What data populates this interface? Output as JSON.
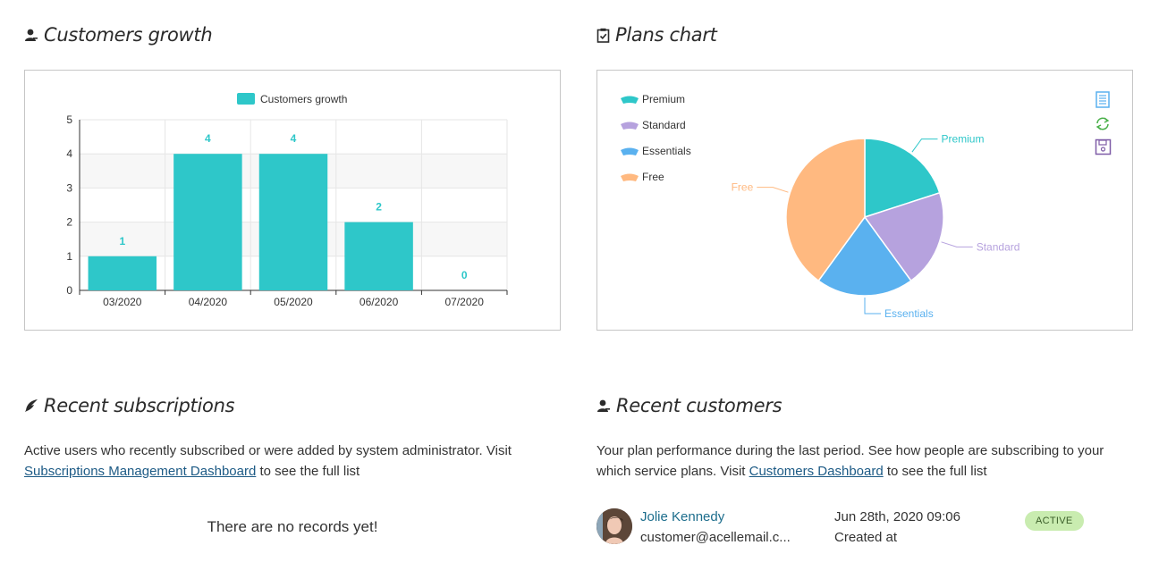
{
  "customers_growth": {
    "title": "Customers growth",
    "chart_data": {
      "type": "bar",
      "title": "",
      "legend": [
        "Customers growth"
      ],
      "legend_position": "top",
      "categories": [
        "03/2020",
        "04/2020",
        "05/2020",
        "06/2020",
        "07/2020"
      ],
      "series": [
        {
          "name": "Customers growth",
          "values": [
            1,
            4,
            4,
            2,
            0
          ]
        }
      ],
      "ylim": [
        0,
        5
      ],
      "yticks": [
        "0",
        "1",
        "2",
        "3",
        "4",
        "5"
      ],
      "grid": true,
      "color": "#2ec7c9"
    }
  },
  "plans_chart": {
    "title": "Plans chart",
    "toolbox": [
      "data-view-icon",
      "restore-icon",
      "save-image-icon"
    ],
    "chart_data": {
      "type": "pie",
      "legend": [
        "Premium",
        "Standard",
        "Essentials",
        "Free"
      ],
      "legend_position": "top-left",
      "slices": [
        {
          "label": "Premium",
          "value": 20,
          "color": "#2ec7c9"
        },
        {
          "label": "Standard",
          "value": 20,
          "color": "#b6a2de"
        },
        {
          "label": "Essentials",
          "value": 20,
          "color": "#5ab1ef"
        },
        {
          "label": "Free",
          "value": 40,
          "color": "#ffb980"
        }
      ]
    }
  },
  "recent_subscriptions": {
    "title": "Recent subscriptions",
    "text_before": "Active users who recently subscribed or were added by system administrator. Visit",
    "link": "Subscriptions Management Dashboard",
    "text_after": " to see the full list",
    "empty": "There are no records yet!"
  },
  "recent_customers": {
    "title": "Recent customers",
    "text_before": "Your plan performance during the last period. See how people are subscribing to your which service plans. Visit ",
    "link": "Customers Dashboard",
    "text_after": " to see the full list",
    "items": [
      {
        "name": "Jolie Kennedy",
        "email": "customer@acellemail.c...",
        "date": "Jun 28th, 2020 09:06",
        "date_label": "Created at",
        "status": "ACTIVE"
      }
    ]
  }
}
